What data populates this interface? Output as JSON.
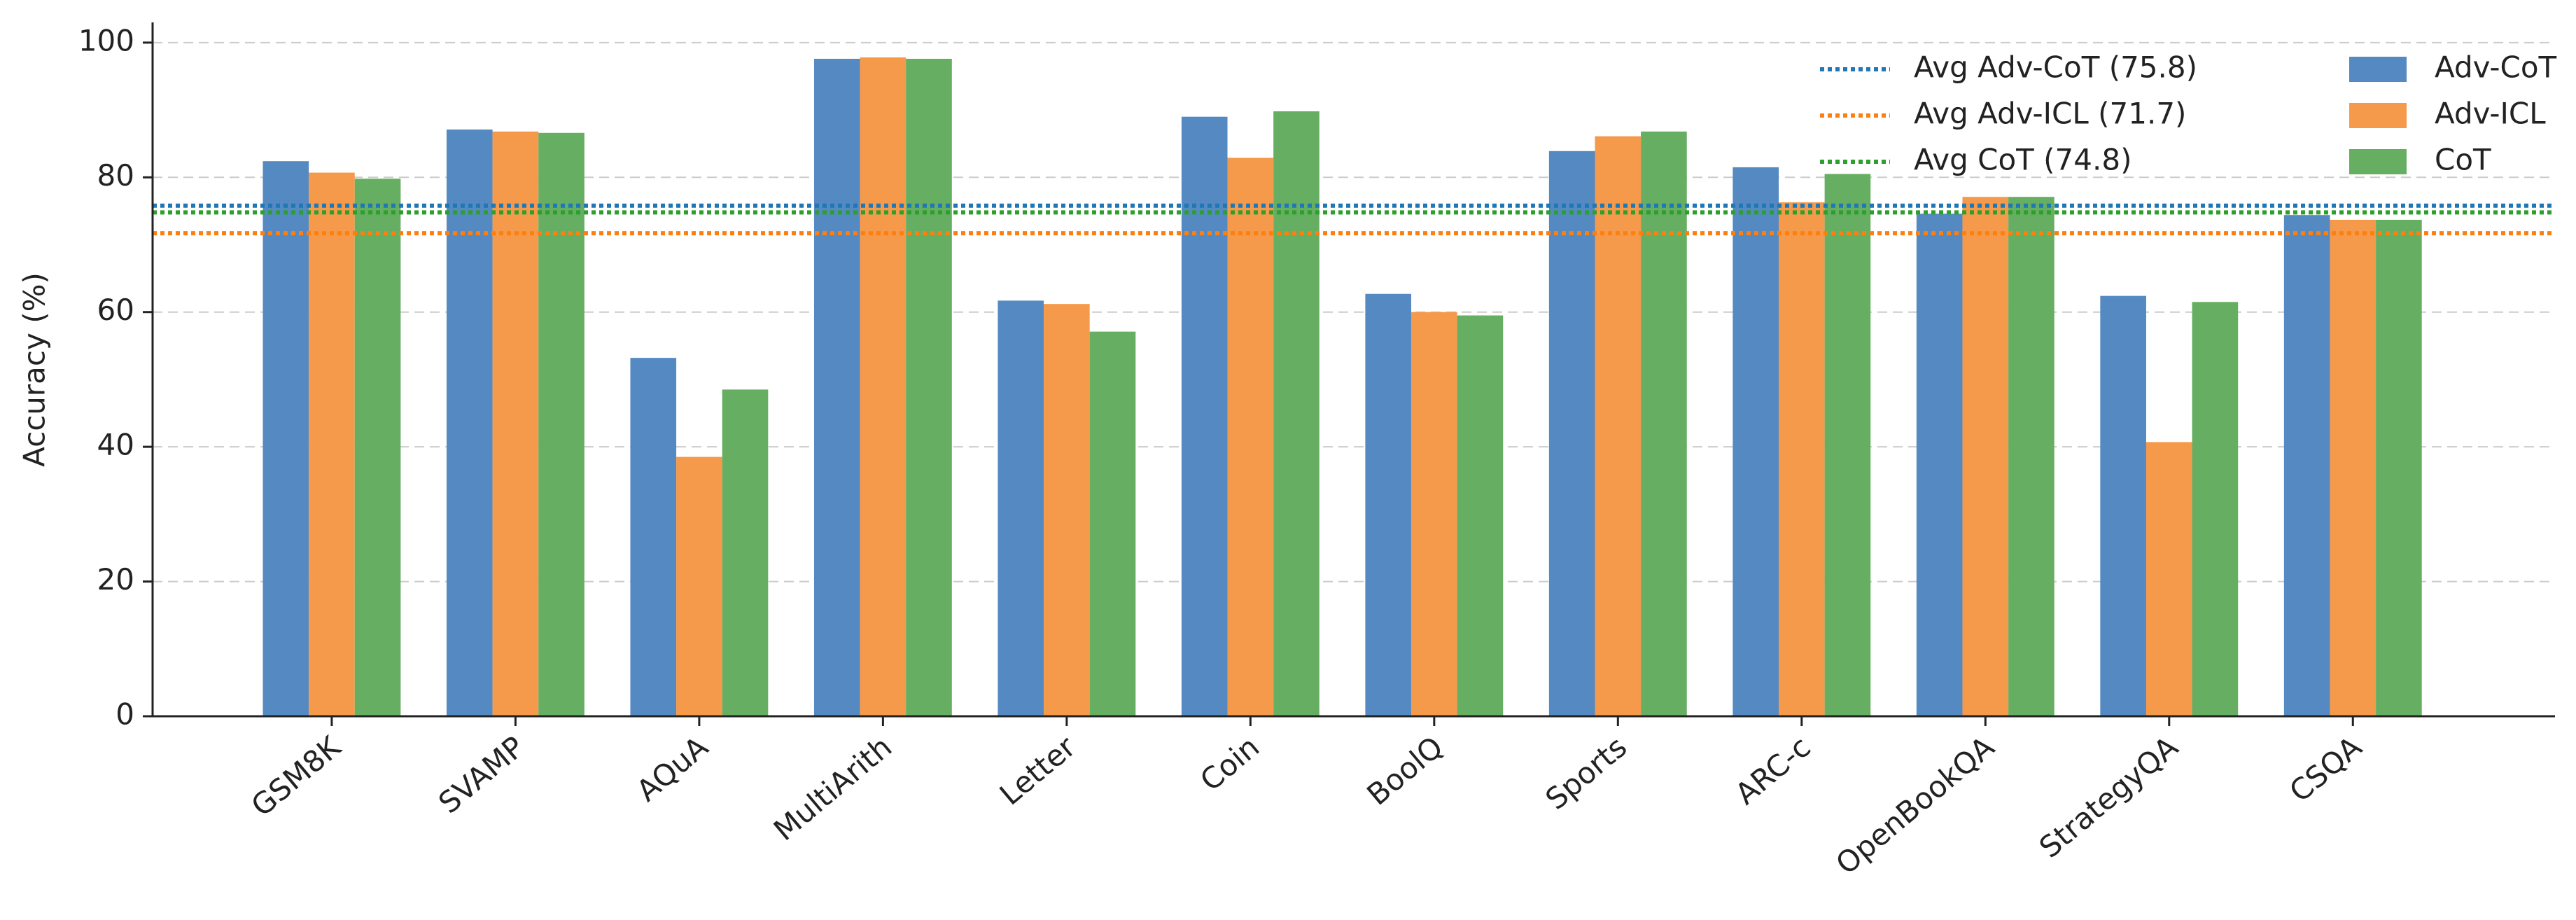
{
  "chart_data": {
    "type": "bar",
    "y_label": "Accuracy (%)",
    "categories": [
      "GSM8K",
      "SVAMP",
      "AQuA",
      "MultiArith",
      "Letter",
      "Coin",
      "BoolQ",
      "Sports",
      "ARC-c",
      "OpenBookQA",
      "StrategyQA",
      "CSQA"
    ],
    "series": [
      {
        "name": "Adv-CoT",
        "color": "#5589c2",
        "values": [
          82.4,
          87.1,
          53.2,
          97.6,
          61.7,
          89.0,
          62.7,
          83.9,
          81.5,
          74.6,
          62.4,
          74.4
        ]
      },
      {
        "name": "Adv-ICL",
        "color": "#f5994b",
        "values": [
          80.7,
          86.8,
          38.5,
          97.8,
          61.2,
          82.9,
          60.0,
          86.1,
          76.3,
          77.1,
          40.7,
          73.7
        ]
      },
      {
        "name": "CoT",
        "color": "#66ae61",
        "values": [
          79.8,
          86.6,
          48.5,
          97.6,
          57.1,
          89.8,
          59.5,
          86.8,
          80.5,
          77.1,
          61.5,
          73.7
        ]
      }
    ],
    "reference_lines": [
      {
        "name": "Avg Adv-CoT (75.8)",
        "value": 75.8,
        "color": "#1f77b4"
      },
      {
        "name": "Avg Adv-ICL (71.7)",
        "value": 71.7,
        "color": "#ff7f0e"
      },
      {
        "name": "Avg CoT (74.8)",
        "value": 74.8,
        "color": "#2ca02c"
      }
    ],
    "ylim": [
      0,
      103
    ],
    "yticks": [
      0,
      20,
      40,
      60,
      80,
      100
    ],
    "grid": true,
    "legend": "upper right"
  }
}
